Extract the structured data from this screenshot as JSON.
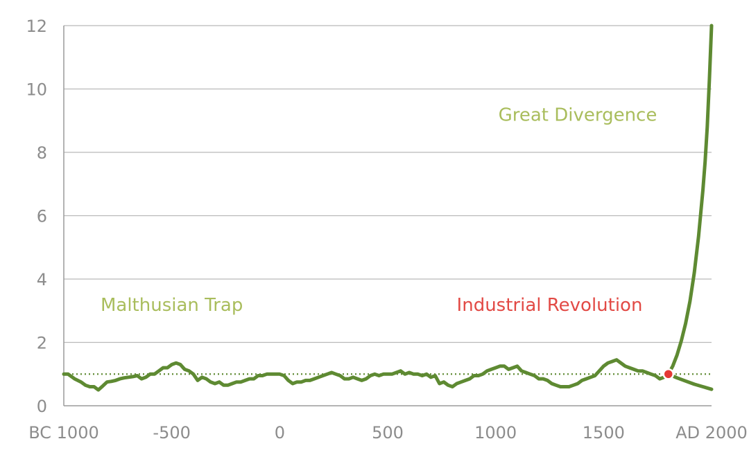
{
  "chart_data": {
    "type": "line",
    "title": "",
    "xlabel": "",
    "ylabel": "",
    "xlim": [
      -1000,
      2000
    ],
    "ylim": [
      0,
      12
    ],
    "grid": true,
    "x_ticks": [
      -1000,
      -500,
      0,
      500,
      1000,
      1500,
      2000
    ],
    "x_tick_labels": [
      "BC 1000",
      "-500",
      "0",
      "500",
      "1000",
      "1500",
      "AD 2000"
    ],
    "y_ticks": [
      0,
      2,
      4,
      6,
      8,
      10,
      12
    ],
    "y_tick_labels": [
      "0",
      "2",
      "4",
      "6",
      "8",
      "10",
      "12"
    ],
    "reference_line": {
      "y": 1.0,
      "style": "dotted"
    },
    "series": [
      {
        "role": "historical",
        "x": [
          -1000,
          -980,
          -950,
          -920,
          -900,
          -880,
          -860,
          -840,
          -820,
          -800,
          -780,
          -760,
          -740,
          -720,
          -700,
          -680,
          -660,
          -640,
          -620,
          -600,
          -580,
          -560,
          -540,
          -520,
          -500,
          -480,
          -460,
          -440,
          -420,
          -400,
          -380,
          -360,
          -340,
          -320,
          -300,
          -280,
          -260,
          -240,
          -220,
          -200,
          -180,
          -160,
          -140,
          -120,
          -100,
          -80,
          -60,
          -40,
          -20,
          0,
          20,
          40,
          60,
          80,
          100,
          120,
          140,
          160,
          180,
          200,
          220,
          240,
          260,
          280,
          300,
          320,
          340,
          360,
          380,
          400,
          420,
          440,
          460,
          480,
          500,
          520,
          540,
          560,
          580,
          600,
          620,
          640,
          660,
          680,
          700,
          720,
          740,
          760,
          780,
          800,
          820,
          840,
          860,
          880,
          900,
          920,
          940,
          960,
          980,
          1000,
          1020,
          1040,
          1060,
          1080,
          1100,
          1120,
          1140,
          1160,
          1180,
          1200,
          1220,
          1240,
          1260,
          1280,
          1300,
          1320,
          1340,
          1360,
          1380,
          1400,
          1420,
          1440,
          1460,
          1480,
          1500,
          1520,
          1540,
          1560,
          1580,
          1600,
          1620,
          1640,
          1660,
          1680,
          1700,
          1720,
          1740,
          1760,
          1780,
          1800
        ],
        "y": [
          1.0,
          1.0,
          0.85,
          0.75,
          0.65,
          0.6,
          0.6,
          0.5,
          0.62,
          0.75,
          0.77,
          0.8,
          0.85,
          0.88,
          0.9,
          0.92,
          0.95,
          0.85,
          0.9,
          1.0,
          1.0,
          1.1,
          1.2,
          1.2,
          1.3,
          1.35,
          1.3,
          1.15,
          1.1,
          1.0,
          0.8,
          0.9,
          0.85,
          0.75,
          0.7,
          0.75,
          0.65,
          0.65,
          0.7,
          0.75,
          0.75,
          0.8,
          0.85,
          0.85,
          0.95,
          0.95,
          1.0,
          1.0,
          1.0,
          1.0,
          0.95,
          0.8,
          0.7,
          0.75,
          0.75,
          0.8,
          0.8,
          0.85,
          0.9,
          0.95,
          1.0,
          1.05,
          1.0,
          0.95,
          0.85,
          0.85,
          0.9,
          0.85,
          0.8,
          0.85,
          0.95,
          1.0,
          0.95,
          1.0,
          1.0,
          1.0,
          1.05,
          1.1,
          1.0,
          1.05,
          1.0,
          1.0,
          0.95,
          1.0,
          0.9,
          0.95,
          0.7,
          0.75,
          0.65,
          0.6,
          0.7,
          0.75,
          0.8,
          0.85,
          0.95,
          0.95,
          1.0,
          1.1,
          1.15,
          1.2,
          1.25,
          1.25,
          1.15,
          1.2,
          1.25,
          1.1,
          1.05,
          1.0,
          0.95,
          0.85,
          0.85,
          0.8,
          0.7,
          0.65,
          0.6,
          0.6,
          0.6,
          0.65,
          0.7,
          0.8,
          0.85,
          0.9,
          0.95,
          1.1,
          1.25,
          1.35,
          1.4,
          1.45,
          1.35,
          1.25,
          1.2,
          1.15,
          1.1,
          1.1,
          1.05,
          1.0,
          0.95,
          0.85,
          0.9,
          1.0
        ]
      },
      {
        "role": "malthusian-continuation",
        "x": [
          1800,
          1840,
          1880,
          1920,
          1960,
          2000
        ],
        "y": [
          1.0,
          0.88,
          0.78,
          0.68,
          0.6,
          0.52
        ]
      },
      {
        "role": "great-divergence",
        "x": [
          1800,
          1820,
          1840,
          1860,
          1880,
          1900,
          1920,
          1940,
          1960,
          1970,
          1980,
          1990,
          2000
        ],
        "y": [
          1.0,
          1.25,
          1.6,
          2.05,
          2.6,
          3.3,
          4.2,
          5.35,
          6.8,
          7.7,
          8.8,
          10.3,
          12.0
        ]
      }
    ],
    "marker": {
      "x": 1800,
      "y": 1.0,
      "color": "#e53935"
    },
    "annotations": [
      {
        "text": "Malthusian Trap",
        "x": -500,
        "y": 3.0,
        "color": "#a9bd5c"
      },
      {
        "text": "Industrial Revolution",
        "x": 1250,
        "y": 3.0,
        "color": "#e24a45"
      },
      {
        "text": "Great Divergence",
        "x": 1380,
        "y": 9.0,
        "color": "#a9bd5c"
      }
    ],
    "colors": {
      "line": "#5e8a32",
      "reference": "#5e8a32",
      "grid": "#b9b9b9",
      "tick_label": "#8c8c8c"
    }
  }
}
